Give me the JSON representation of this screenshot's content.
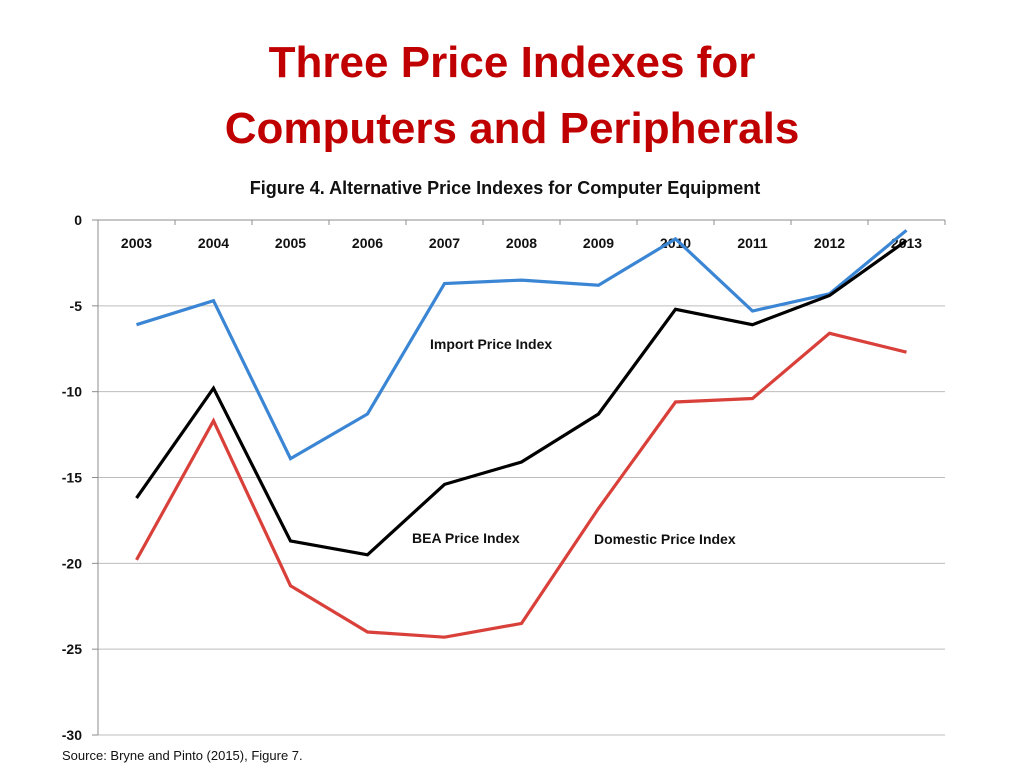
{
  "slide": {
    "title_line1": "Three Price Indexes for",
    "title_line2": "Computers and Peripherals",
    "source": "Source: Bryne and Pinto (2015), Figure 7."
  },
  "chart_data": {
    "type": "line",
    "title": "Figure 4.  Alternative Price Indexes for Computer Equipment",
    "xlabel": "",
    "ylabel": "",
    "ylim": [
      -30,
      0
    ],
    "yticks": [
      0,
      -5,
      -10,
      -15,
      -20,
      -25,
      -30
    ],
    "grid": true,
    "x_tick_position": "top",
    "categories": [
      "2003",
      "2004",
      "2005",
      "2006",
      "2007",
      "2008",
      "2009",
      "2010",
      "2011",
      "2012",
      "2013"
    ],
    "series": [
      {
        "name": "Import Price Index",
        "color": "#3b86d4",
        "values": [
          -6.1,
          -4.7,
          -13.9,
          -11.3,
          -3.7,
          -3.5,
          -3.8,
          -1.1,
          -5.3,
          -4.3,
          -0.6
        ]
      },
      {
        "name": "BEA Price Index",
        "color": "#000000",
        "values": [
          -16.2,
          -9.8,
          -18.7,
          -19.5,
          -15.4,
          -14.1,
          -11.3,
          -5.2,
          -6.1,
          -4.4,
          -1.2
        ]
      },
      {
        "name": "Domestic Price Index",
        "color": "#d9403a",
        "values": [
          -19.8,
          -11.7,
          -21.3,
          -24.0,
          -24.3,
          -23.5,
          -16.8,
          -10.6,
          -10.4,
          -6.6,
          -7.7
        ]
      }
    ]
  }
}
